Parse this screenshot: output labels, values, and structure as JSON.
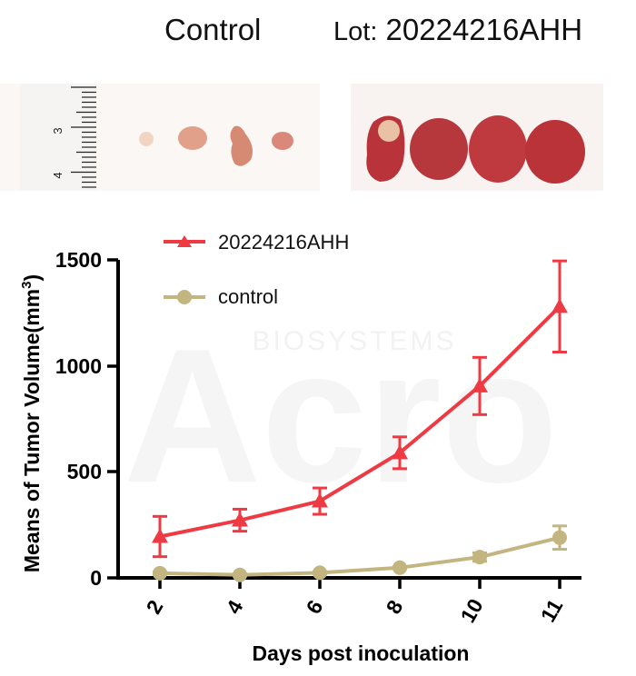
{
  "header": {
    "control_label": "Control",
    "lot_prefix": "Lot:",
    "lot_number": "20224216AHH"
  },
  "photos": {
    "ruler_labels": [
      "3",
      "4"
    ]
  },
  "watermark": {
    "text": "BIOSYSTEMS",
    "logo": "Acro"
  },
  "chart_data": {
    "type": "line",
    "x": [
      2,
      4,
      6,
      8,
      10,
      11
    ],
    "x_tick_labels": [
      "2",
      "4",
      "6",
      "8",
      "10",
      "11"
    ],
    "xlabel": "Days post inoculation",
    "ylabel": "Means of Tumor Volume(mm",
    "ylabel_superscript": "3",
    "ylabel_suffix": ")",
    "ylim": [
      0,
      1500
    ],
    "y_tick_labels": [
      "0",
      "500",
      "1000",
      "1500"
    ],
    "y_ticks": [
      0,
      500,
      1000,
      1500
    ],
    "legend_position": "top-left",
    "series": [
      {
        "name": "20224216AHH",
        "color": "#ee3a43",
        "marker": "triangle",
        "values": [
          195,
          272,
          362,
          590,
          905,
          1280
        ],
        "errors": [
          95,
          52,
          62,
          75,
          135,
          215
        ]
      },
      {
        "name": "control",
        "color": "#c2b57f",
        "marker": "circle",
        "values": [
          22,
          14,
          24,
          48,
          98,
          190
        ],
        "errors": [
          5,
          5,
          5,
          5,
          20,
          55
        ]
      }
    ]
  }
}
